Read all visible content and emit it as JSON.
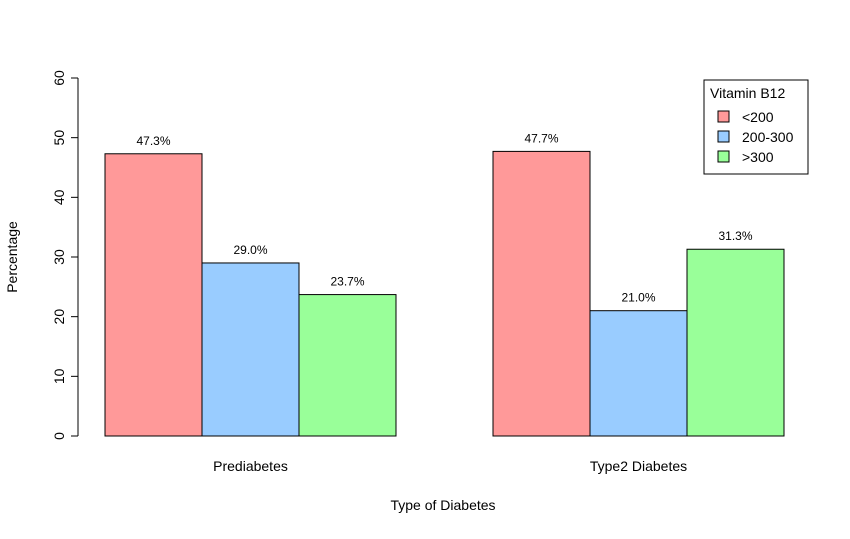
{
  "chart_data": {
    "type": "bar",
    "categories": [
      "Prediabetes",
      "Type2 Diabetes"
    ],
    "series": [
      {
        "name": "<200",
        "values": [
          47.3,
          47.7
        ],
        "color": "#ff9999"
      },
      {
        "name": "200-300",
        "values": [
          29.0,
          21.0
        ],
        "color": "#99ccff"
      },
      {
        "name": ">300",
        "values": [
          23.7,
          31.3
        ],
        "color": "#99ff99"
      }
    ],
    "data_labels": [
      [
        "47.3%",
        "29.0%",
        "23.7%"
      ],
      [
        "47.7%",
        "21.0%",
        "31.3%"
      ]
    ],
    "xlabel": "Type of Diabetes",
    "ylabel": "Percentage",
    "ylim": [
      0,
      60
    ],
    "yticks": [
      0,
      10,
      20,
      30,
      40,
      50,
      60
    ],
    "legend": {
      "title": "Vitamin B12",
      "position": "top-right"
    },
    "grid": false
  }
}
